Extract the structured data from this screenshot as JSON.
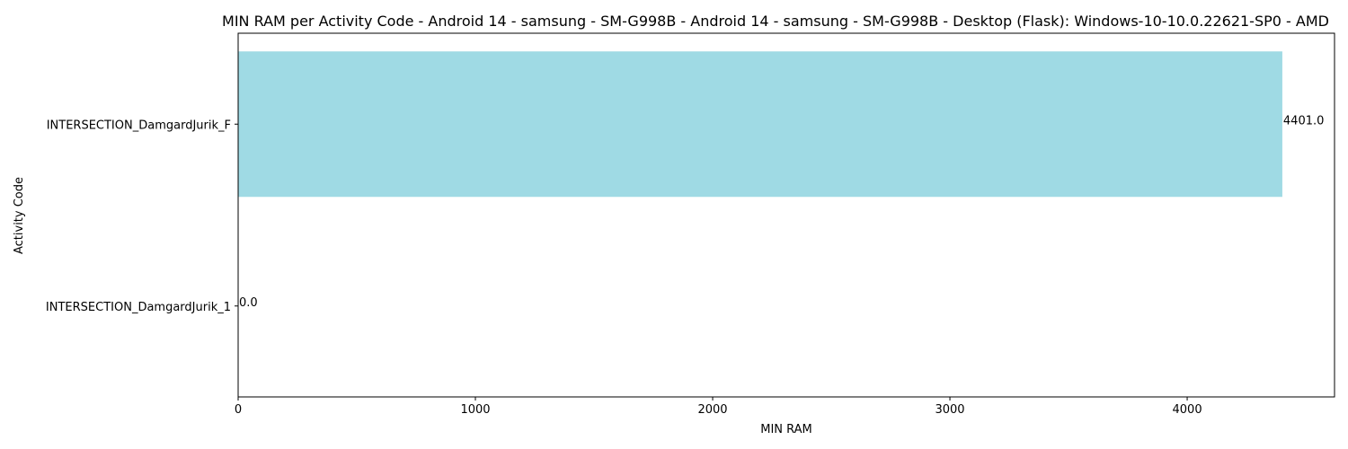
{
  "chart_data": {
    "type": "bar",
    "orientation": "horizontal",
    "title": "MIN RAM per Activity Code - Android 14 - samsung - SM-G998B - Android 14 - samsung - SM-G998B - Desktop (Flask): Windows-10-10.0.22621-SP0 - AMD",
    "xlabel": "MIN RAM",
    "ylabel": "Activity Code",
    "categories": [
      "INTERSECTION_DamgardJurik_F",
      "INTERSECTION_DamgardJurik_1"
    ],
    "values": [
      4401.0,
      0.0
    ],
    "value_labels": [
      "4401.0",
      "0.0"
    ],
    "xlim": [
      0,
      4621
    ],
    "xticks": [
      0,
      1000,
      2000,
      3000,
      4000
    ],
    "xtick_labels": [
      "0",
      "1000",
      "2000",
      "3000",
      "4000"
    ],
    "bar_color": "#9fdae4",
    "grid": false,
    "legend": "none"
  }
}
